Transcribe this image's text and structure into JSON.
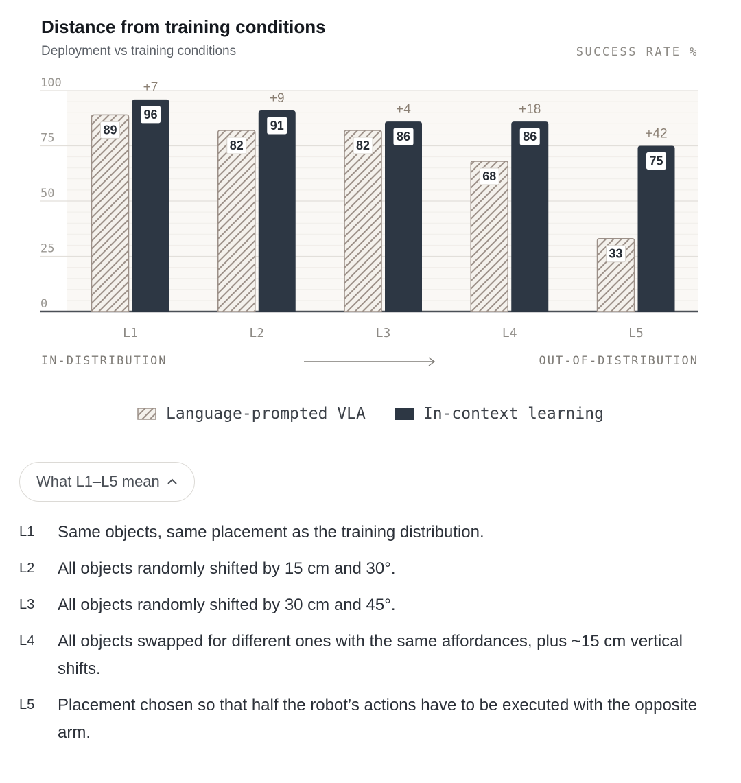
{
  "chart_data": {
    "type": "bar",
    "title": "Distance from training conditions",
    "subtitle": "Deployment vs training conditions",
    "ylabel": "SUCCESS RATE %",
    "ylim": [
      0,
      100
    ],
    "yticks": [
      "0",
      "25",
      "50",
      "75",
      "100"
    ],
    "categories": [
      "L1",
      "L2",
      "L3",
      "L4",
      "L5"
    ],
    "series": [
      {
        "name": "Language-prompted VLA",
        "values": [
          89,
          82,
          82,
          68,
          33
        ],
        "value_labels": [
          "89",
          "82",
          "82",
          "68",
          "33"
        ]
      },
      {
        "name": "In-context learning",
        "values": [
          96,
          91,
          86,
          86,
          75
        ],
        "value_labels": [
          "96",
          "91",
          "86",
          "86",
          "75"
        ]
      }
    ],
    "deltas": [
      "+7",
      "+9",
      "+4",
      "+18",
      "+42"
    ],
    "grid": true,
    "legend": "bottom",
    "x_range_labels": {
      "left": "IN-DISTRIBUTION",
      "right": "OUT-OF-DISTRIBUTION"
    }
  },
  "colors": {
    "in_context": "#2d3744",
    "vla_stripe": "#9c9088",
    "vla_fill": "#f4f1ec",
    "plot_bg": "#faf8f5",
    "axis": "#4a4f56"
  },
  "toggle": {
    "label": "What L1–L5 mean",
    "icon": "chevron-up-icon"
  },
  "definitions": [
    {
      "key": "L1",
      "text": "Same objects, same placement as the training distribution."
    },
    {
      "key": "L2",
      "text": "All objects randomly shifted by 15 cm and 30°."
    },
    {
      "key": "L3",
      "text": "All objects randomly shifted by 30 cm and 45°."
    },
    {
      "key": "L4",
      "text": "All objects swapped for different ones with the same affordances, plus ~15 cm vertical shifts."
    },
    {
      "key": "L5",
      "text": "Placement chosen so that half the robot’s actions have to be executed with the opposite arm."
    }
  ]
}
